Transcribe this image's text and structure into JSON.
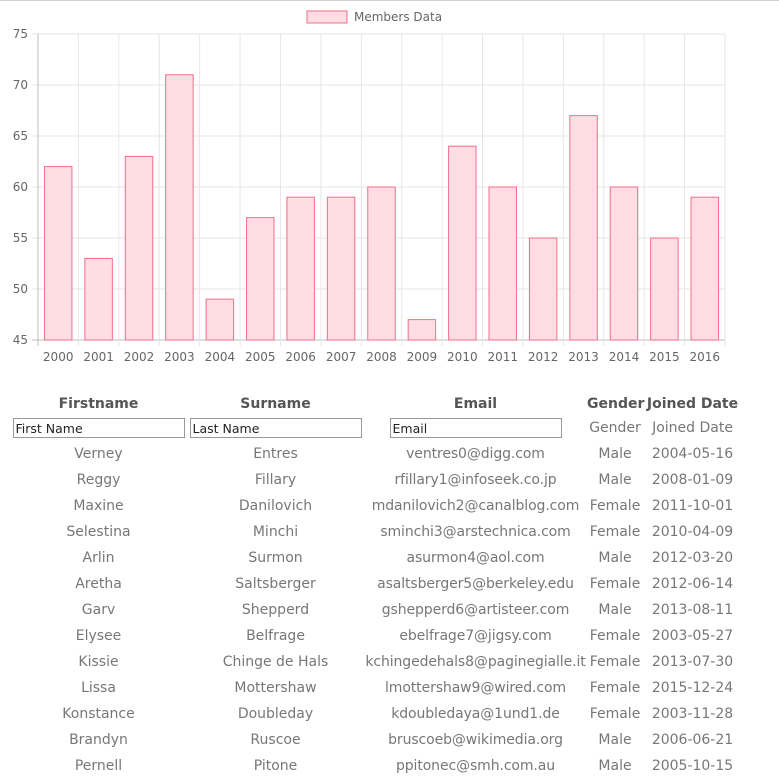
{
  "chart_data": {
    "type": "bar",
    "categories": [
      "2000",
      "2001",
      "2002",
      "2003",
      "2004",
      "2005",
      "2006",
      "2007",
      "2008",
      "2009",
      "2010",
      "2011",
      "2012",
      "2013",
      "2014",
      "2015",
      "2016"
    ],
    "series": [
      {
        "name": "Members Data",
        "values": [
          62,
          53,
          63,
          71,
          49,
          57,
          59,
          59,
          60,
          47,
          64,
          60,
          55,
          67,
          60,
          55,
          59
        ]
      }
    ],
    "ylim": [
      45,
      75
    ],
    "yticks": [
      45,
      50,
      55,
      60,
      65,
      70,
      75
    ],
    "grid": true,
    "legend": "top-center",
    "colors": {
      "fill": "#ffdde3",
      "stroke": "#f26d8b"
    }
  },
  "table": {
    "headers": [
      "Firstname",
      "Surname",
      "Email",
      "Gender",
      "Joined Date"
    ],
    "filters": {
      "firstname_placeholder": "First Name",
      "surname_placeholder": "Last Name",
      "email_placeholder": "Email",
      "gender": "Gender",
      "joined": "Joined Date"
    },
    "rows": [
      [
        "Verney",
        "Entres",
        "ventres0@digg.com",
        "Male",
        "2004-05-16"
      ],
      [
        "Reggy",
        "Fillary",
        "rfillary1@infoseek.co.jp",
        "Male",
        "2008-01-09"
      ],
      [
        "Maxine",
        "Danilovich",
        "mdanilovich2@canalblog.com",
        "Female",
        "2011-10-01"
      ],
      [
        "Selestina",
        "Minchi",
        "sminchi3@arstechnica.com",
        "Female",
        "2010-04-09"
      ],
      [
        "Arlin",
        "Surmon",
        "asurmon4@aol.com",
        "Male",
        "2012-03-20"
      ],
      [
        "Aretha",
        "Saltsberger",
        "asaltsberger5@berkeley.edu",
        "Female",
        "2012-06-14"
      ],
      [
        "Garv",
        "Shepperd",
        "gshepperd6@artisteer.com",
        "Male",
        "2013-08-11"
      ],
      [
        "Elysee",
        "Belfrage",
        "ebelfrage7@jigsy.com",
        "Female",
        "2003-05-27"
      ],
      [
        "Kissie",
        "Chinge de Hals",
        "kchingedehals8@paginegialle.it",
        "Female",
        "2013-07-30"
      ],
      [
        "Lissa",
        "Mottershaw",
        "lmottershaw9@wired.com",
        "Female",
        "2015-12-24"
      ],
      [
        "Konstance",
        "Doubleday",
        "kdoubledaya@1und1.de",
        "Female",
        "2003-11-28"
      ],
      [
        "Brandyn",
        "Ruscoe",
        "bruscoeb@wikimedia.org",
        "Male",
        "2006-06-21"
      ],
      [
        "Pernell",
        "Pitone",
        "ppitonec@smh.com.au",
        "Male",
        "2005-10-15"
      ]
    ]
  }
}
